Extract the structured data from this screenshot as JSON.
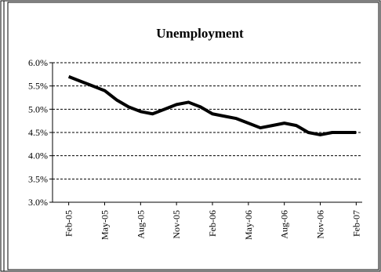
{
  "chart_data": {
    "type": "line",
    "title": "Unemployment",
    "categories": [
      "Feb-05",
      null,
      null,
      "May-05",
      null,
      null,
      "Aug-05",
      null,
      null,
      "Nov-05",
      null,
      null,
      "Feb-06",
      null,
      null,
      "May-06",
      null,
      null,
      "Aug-06",
      null,
      null,
      "Nov-06",
      null,
      null,
      "Feb-07"
    ],
    "series": [
      {
        "name": "Unemployment",
        "color": "#000000",
        "values": [
          5.7,
          5.6,
          5.5,
          5.4,
          5.2,
          5.05,
          4.95,
          4.9,
          5.0,
          5.1,
          5.15,
          5.05,
          4.9,
          4.85,
          4.8,
          4.7,
          4.6,
          4.65,
          4.7,
          4.65,
          4.5,
          4.45,
          4.5,
          4.5,
          4.5
        ]
      }
    ],
    "ylim": [
      3.0,
      6.0
    ],
    "yticks": [
      {
        "value": 3.0,
        "label": "3.0%"
      },
      {
        "value": 3.5,
        "label": "3.5%"
      },
      {
        "value": 4.0,
        "label": "4.0%"
      },
      {
        "value": 4.5,
        "label": "4.5%"
      },
      {
        "value": 5.0,
        "label": "5.0%"
      },
      {
        "value": 5.5,
        "label": "5.5%"
      },
      {
        "value": 6.0,
        "label": "6.0%"
      }
    ],
    "grid": true
  }
}
